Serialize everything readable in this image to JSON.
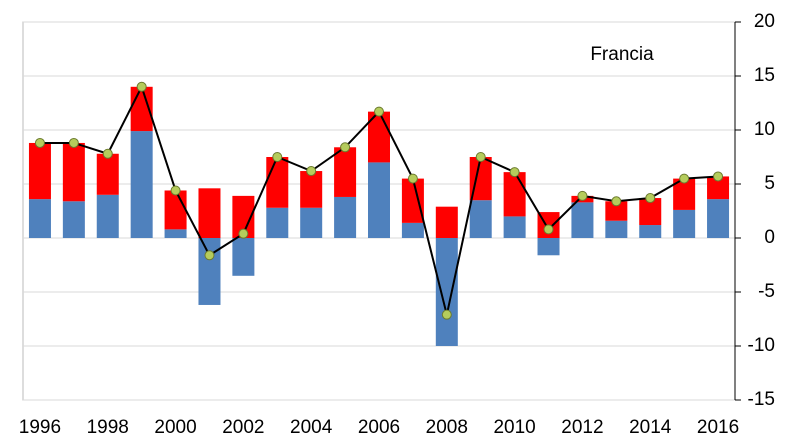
{
  "chart_data": {
    "type": "bar",
    "annotation": "Francia",
    "categories": [
      "1996",
      null,
      "1998",
      null,
      "2000",
      null,
      "2002",
      null,
      "2004",
      null,
      "2006",
      null,
      "2008",
      null,
      "2010",
      null,
      "2012",
      null,
      "2014",
      null,
      "2016"
    ],
    "series": [
      {
        "color": "#4f81bd",
        "values": [
          3.6,
          3.4,
          4.0,
          9.9,
          0.8,
          -6.2,
          -3.5,
          2.8,
          2.8,
          3.8,
          7.0,
          1.4,
          -10.0,
          3.5,
          2.0,
          -1.6,
          3.3,
          1.6,
          1.2,
          2.6,
          3.6
        ]
      },
      {
        "color": "#ff0000",
        "values": [
          5.2,
          5.4,
          3.8,
          4.1,
          3.6,
          4.6,
          3.9,
          4.7,
          3.4,
          4.6,
          4.7,
          4.1,
          2.9,
          4.0,
          4.1,
          2.4,
          0.6,
          1.8,
          2.5,
          2.9,
          2.1
        ]
      },
      {
        "type": "line",
        "color": "#000000",
        "marker_color": "#b5cc5c",
        "values": [
          8.8,
          8.8,
          7.8,
          14.0,
          4.4,
          -1.6,
          0.4,
          7.5,
          6.2,
          8.4,
          11.7,
          5.5,
          -7.1,
          7.5,
          6.1,
          0.8,
          3.9,
          3.4,
          3.7,
          5.5,
          5.7
        ]
      }
    ],
    "ylim": [
      -15,
      20
    ],
    "yticks": [
      -15,
      -10,
      -5,
      0,
      5,
      10,
      15,
      20
    ],
    "grid": true
  }
}
